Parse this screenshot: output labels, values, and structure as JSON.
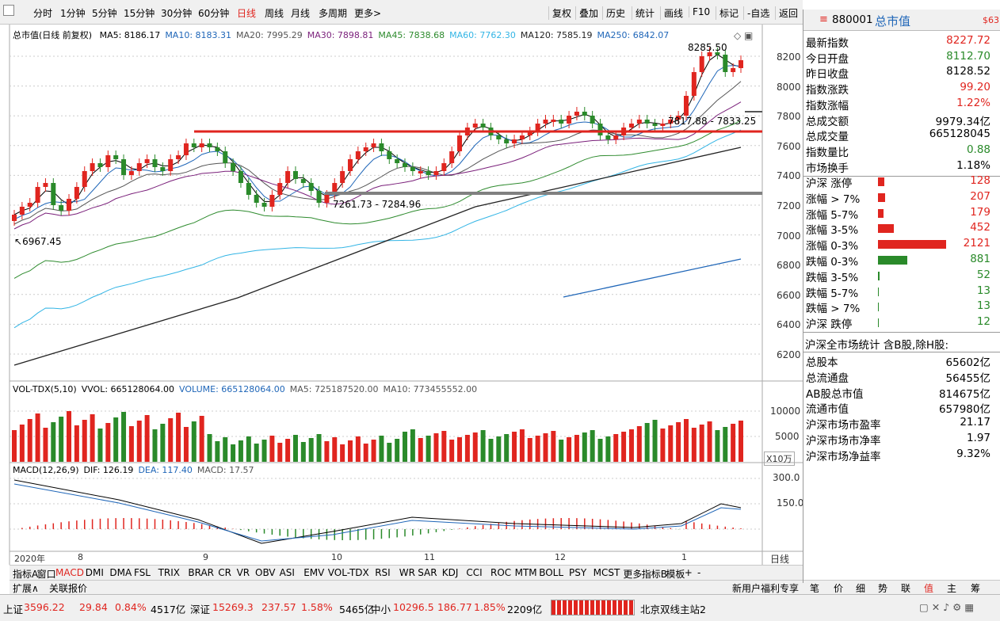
{
  "toolbar": {
    "periods": [
      "分时",
      "1分钟",
      "5分钟",
      "15分钟",
      "30分钟",
      "60分钟",
      "日线",
      "周线",
      "月线",
      "多周期",
      "更多>"
    ],
    "actions": [
      "复权",
      "叠加",
      "历史",
      "统计",
      "画线",
      "F10",
      "标记",
      "-自选",
      "返回"
    ]
  },
  "ma_legend": {
    "title": "总市值(日线 前复权)",
    "items": [
      {
        "label": "MA5: 8186.17",
        "color": "#000000"
      },
      {
        "label": "MA10: 8183.31",
        "color": "#1f66b8"
      },
      {
        "label": "MA20: 7995.29",
        "color": "#555555"
      },
      {
        "label": "MA30: 7898.81",
        "color": "#7a1f7a"
      },
      {
        "label": "MA45: 7838.68",
        "color": "#2e8b2e"
      },
      {
        "label": "MA60: 7762.30",
        "color": "#33b5e5"
      },
      {
        "label": "MA120: 7585.19",
        "color": "#222222"
      },
      {
        "label": "MA250: 6842.07",
        "color": "#1f66b8"
      }
    ]
  },
  "price_axis": [
    "8200",
    "8000",
    "7800",
    "7600",
    "7400",
    "7200",
    "7000",
    "6800",
    "6600",
    "6400",
    "6200"
  ],
  "annotations": {
    "high": "8285.50",
    "low": "6967.45",
    "support": "7261.73 - 7284.96",
    "resist": "7817.88 - 7833.25"
  },
  "vol_legend": {
    "items": [
      {
        "label": "VOL-TDX(5,10)",
        "color": "#000000"
      },
      {
        "label": "VVOL: 665128064.00",
        "color": "#000000"
      },
      {
        "label": "VOLUME: 665128064.00",
        "color": "#1f66b8"
      },
      {
        "label": "MA5: 725187520.00",
        "color": "#555555"
      },
      {
        "label": "MA10: 773455552.00",
        "color": "#555555"
      }
    ]
  },
  "vol_axis": [
    "10000",
    "5000"
  ],
  "vol_unit": "X10万",
  "macd_legend": {
    "items": [
      {
        "label": "MACD(12,26,9)",
        "color": "#000000"
      },
      {
        "label": "DIF: 126.19",
        "color": "#000000"
      },
      {
        "label": "DEA: 117.40",
        "color": "#1f66b8"
      },
      {
        "label": "MACD: 17.57",
        "color": "#555555"
      }
    ]
  },
  "macd_axis": [
    "300.0",
    "150.0"
  ],
  "date_axis": [
    "2020年",
    "8",
    "9",
    "10",
    "11",
    "12",
    "1"
  ],
  "period_label": "日线",
  "indicator_tabs": [
    "指标A",
    "窗口",
    "MACD",
    "DMI",
    "DMA",
    "FSL",
    "TRIX",
    "BRAR",
    "CR",
    "VR",
    "OBV",
    "ASI",
    "EMV",
    "VOL-TDX",
    "RSI",
    "WR",
    "SAR",
    "KDJ",
    "CCI",
    "ROC",
    "MTM",
    "BOLL",
    "PSY",
    "MCST",
    "更多",
    "指标B",
    "模板",
    "+",
    "-"
  ],
  "bottom_tabs": [
    "扩展∧",
    "关联报价"
  ],
  "bottom_right": [
    "新用户福利专享",
    "笔",
    "价",
    "细",
    "势",
    "联",
    "值",
    "主",
    "筹"
  ],
  "quote": {
    "code": "880001",
    "name": "总市值",
    "tag": "$63",
    "rows": [
      {
        "k": "最新指数",
        "v": "8227.72",
        "c": "red"
      },
      {
        "k": "今日开盘",
        "v": "8112.70",
        "c": "green"
      },
      {
        "k": "昨日收盘",
        "v": "8128.52",
        "c": ""
      },
      {
        "k": "指数涨跌",
        "v": "99.20",
        "c": "red"
      },
      {
        "k": "指数涨幅",
        "v": "1.22%",
        "c": "red"
      },
      {
        "k": "总成交额",
        "v": "9979.34亿",
        "c": ""
      },
      {
        "k": "总成交量",
        "v": "665128045",
        "c": ""
      },
      {
        "k": "指数量比",
        "v": "0.88",
        "c": "green"
      },
      {
        "k": "市场换手",
        "v": "1.18%",
        "c": ""
      }
    ],
    "breadth": [
      {
        "k": "沪深 涨停",
        "v": "128",
        "c": "red",
        "w": 8
      },
      {
        "k": "涨幅 > 7%",
        "v": "207",
        "c": "red",
        "w": 9
      },
      {
        "k": "涨幅 5-7%",
        "v": "179",
        "c": "red",
        "w": 7
      },
      {
        "k": "涨幅 3-5%",
        "v": "452",
        "c": "red",
        "w": 20
      },
      {
        "k": "涨幅 0-3%",
        "v": "2121",
        "c": "red",
        "w": 86
      },
      {
        "k": "跌幅 0-3%",
        "v": "881",
        "c": "green",
        "w": 37
      },
      {
        "k": "跌幅 3-5%",
        "v": "52",
        "c": "green",
        "w": 2
      },
      {
        "k": "跌幅 5-7%",
        "v": "13",
        "c": "green",
        "w": 1
      },
      {
        "k": "跌幅 > 7%",
        "v": "13",
        "c": "green",
        "w": 1
      },
      {
        "k": "沪深 跌停",
        "v": "12",
        "c": "green",
        "w": 1
      }
    ],
    "stats_title": "沪深全市场统计 含B股,除H股:",
    "stats": [
      {
        "k": "总股本",
        "v": "65602亿"
      },
      {
        "k": "总流通盘",
        "v": "56455亿"
      },
      {
        "k": "AB股总市值",
        "v": "814675亿"
      },
      {
        "k": "流通市值",
        "v": "657980亿"
      },
      {
        "k": "沪深市场市盈率",
        "v": "21.17"
      },
      {
        "k": "沪深市场市净率",
        "v": "1.97"
      },
      {
        "k": "沪深市场净益率",
        "v": "9.32%"
      }
    ]
  },
  "status": {
    "sh": {
      "name": "上证",
      "price": "3596.22",
      "chg": "29.84",
      "pct": "0.84%",
      "amt": "4517亿"
    },
    "sz": {
      "name": "深证",
      "price": "15269.3",
      "chg": "237.57",
      "pct": "1.58%",
      "amt": "5465亿"
    },
    "zx": {
      "name": "中小",
      "price": "10296.5",
      "chg": "186.77",
      "pct": "1.85%",
      "amt": "2209亿"
    },
    "server": "北京双线主站2"
  }
}
